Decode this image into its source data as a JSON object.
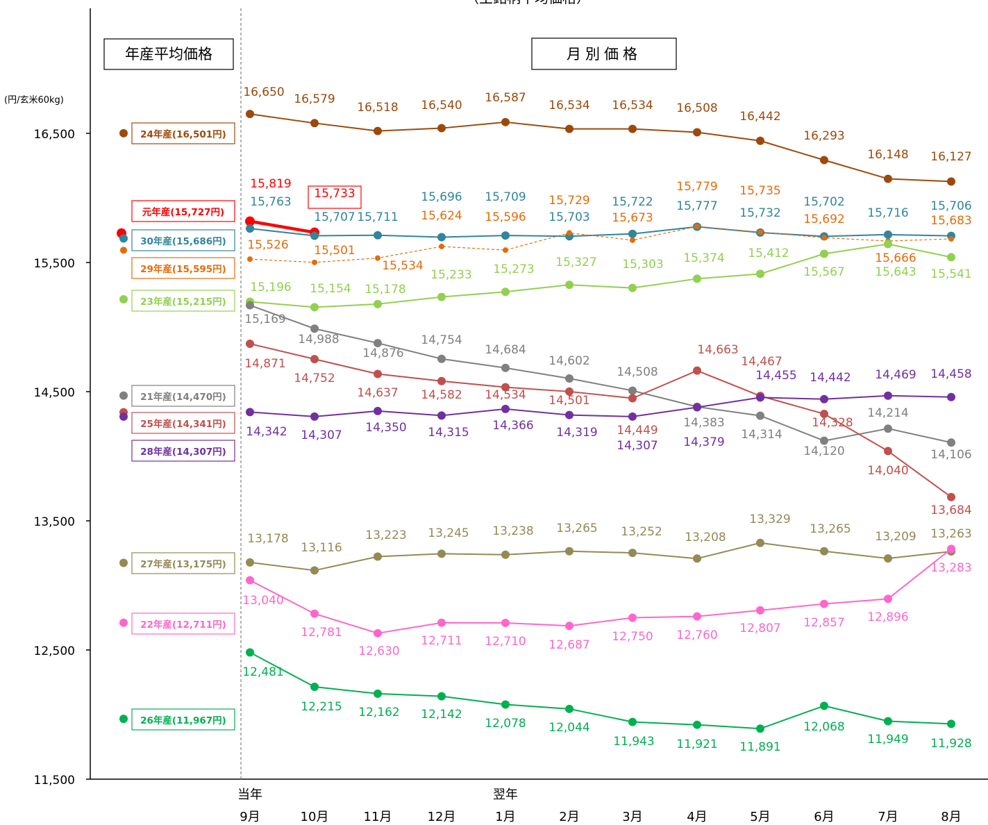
{
  "chart_data": {
    "type": "line",
    "title": "（主銘柄平均価格）",
    "ylabel": "(円/玄米60kg)",
    "ylim": [
      11500,
      17100
    ],
    "yticks": [
      "11,500",
      "12,500",
      "13,500",
      "14,500",
      "15,500",
      "16,500"
    ],
    "ytick_values": [
      11500,
      12500,
      13500,
      14500,
      15500,
      16500
    ],
    "grid": false,
    "header_left": "年産平均価格",
    "header_right": "月別価格",
    "year_label_current": "当年",
    "year_label_next": "翌年",
    "categories": [
      "9月",
      "10月",
      "11月",
      "12月",
      "1月",
      "2月",
      "3月",
      "4月",
      "5月",
      "6月",
      "7月",
      "8月"
    ],
    "series": [
      {
        "name": "24年産(16,501円)",
        "avg": 16501,
        "color": "#9C4A0C",
        "values": [
          16650,
          16579,
          16518,
          16540,
          16587,
          16534,
          16534,
          16508,
          16442,
          16293,
          16148,
          16127
        ],
        "labels": [
          "16,650",
          "16,579",
          "16,518",
          "16,540",
          "16,587",
          "16,534",
          "16,534",
          "16,508",
          "16,442",
          "16,293",
          "16,148",
          "16,127"
        ]
      },
      {
        "name": "元年産(15,727円)",
        "avg": 15727,
        "color": "#FF0000",
        "values": [
          15819,
          15733,
          null,
          null,
          null,
          null,
          null,
          null,
          null,
          null,
          null,
          null
        ],
        "labels": [
          "15,819",
          "15,733",
          "",
          "",
          "",
          "",
          "",
          "",
          "",
          "",
          "",
          ""
        ]
      },
      {
        "name": "30年産(15,686円)",
        "avg": 15686,
        "color": "#31859C",
        "values": [
          15763,
          15707,
          15711,
          15696,
          15709,
          15703,
          15722,
          15777,
          15732,
          15702,
          15716,
          15706
        ],
        "labels": [
          "15,763",
          "15,707",
          "15,711",
          "15,696",
          "15,709",
          "15,703",
          "15,722",
          "15,777",
          "15,732",
          "15,702",
          "15,716",
          "15,706"
        ]
      },
      {
        "name": "29年産(15,595円)",
        "avg": 15595,
        "color": "#E46C0A",
        "values": [
          15526,
          15501,
          15534,
          15624,
          15596,
          15729,
          15673,
          15779,
          15735,
          15692,
          15666,
          15683
        ],
        "labels": [
          "15,526",
          "15,501",
          "15,534",
          "15,624",
          "15,596",
          "15,729",
          "15,673",
          "15,779",
          "15,735",
          "15,692",
          "15,666",
          "15,683"
        ]
      },
      {
        "name": "23年産(15,215円)",
        "avg": 15215,
        "color": "#92D050",
        "values": [
          15196,
          15154,
          15178,
          15233,
          15273,
          15327,
          15303,
          15374,
          15412,
          15567,
          15643,
          15541
        ],
        "labels": [
          "15,196",
          "15,154",
          "15,178",
          "15,233",
          "15,273",
          "15,327",
          "15,303",
          "15,374",
          "15,412",
          "15,567",
          "15,643",
          "15,541"
        ]
      },
      {
        "name": "21年産(14,470円)",
        "avg": 14470,
        "color": "#808080",
        "values": [
          15169,
          14988,
          14876,
          14754,
          14684,
          14602,
          14508,
          14383,
          14314,
          14120,
          14214,
          14106
        ],
        "labels": [
          "15,169",
          "14,988",
          "14,876",
          "14,754",
          "14,684",
          "14,602",
          "14,508",
          "14,383",
          "14,314",
          "14,120",
          "14,214",
          "14,106"
        ]
      },
      {
        "name": "25年産(14,341円)",
        "avg": 14341,
        "color": "#C0504D",
        "values": [
          14871,
          14752,
          14637,
          14582,
          14534,
          14501,
          14449,
          14663,
          14467,
          14328,
          14040,
          13684
        ],
        "labels": [
          "14,871",
          "14,752",
          "14,637",
          "14,582",
          "14,534",
          "14,501",
          "14,449",
          "14,663",
          "14,467",
          "14,328",
          "14,040",
          "13,684"
        ]
      },
      {
        "name": "28年産(14,307円)",
        "avg": 14307,
        "color": "#7030A0",
        "values": [
          14342,
          14307,
          14350,
          14315,
          14366,
          14319,
          14307,
          14379,
          14455,
          14442,
          14469,
          14458
        ],
        "labels": [
          "14,342",
          "14,307",
          "14,350",
          "14,315",
          "14,366",
          "14,319",
          "14,307",
          "14,379",
          "14,455",
          "14,442",
          "14,469",
          "14,458"
        ]
      },
      {
        "name": "27年産(13,175円)",
        "avg": 13175,
        "color": "#948A54",
        "values": [
          13178,
          13116,
          13223,
          13245,
          13238,
          13265,
          13252,
          13208,
          13329,
          13265,
          13209,
          13263
        ],
        "labels": [
          "13,178",
          "13,116",
          "13,223",
          "13,245",
          "13,238",
          "13,265",
          "13,252",
          "13,208",
          "13,329",
          "13,265",
          "13,209",
          "13,263"
        ]
      },
      {
        "name": "22年産(12,711円)",
        "avg": 12711,
        "color": "#FF66CC",
        "values": [
          13040,
          12781,
          12630,
          12711,
          12710,
          12687,
          12750,
          12760,
          12807,
          12857,
          12896,
          13283
        ],
        "labels": [
          "13,040",
          "12,781",
          "12,630",
          "12,711",
          "12,710",
          "12,687",
          "12,750",
          "12,760",
          "12,807",
          "12,857",
          "12,896",
          "13,283"
        ]
      },
      {
        "name": "26年産(11,967円)",
        "avg": 11967,
        "color": "#00B050",
        "values": [
          12481,
          12215,
          12162,
          12142,
          12078,
          12044,
          11943,
          11921,
          11891,
          12068,
          11949,
          11928
        ],
        "labels": [
          "12,481",
          "12,215",
          "12,162",
          "12,142",
          "12,078",
          "12,044",
          "11,943",
          "11,921",
          "11,891",
          "12,068",
          "11,949",
          "11,928"
        ]
      }
    ]
  }
}
